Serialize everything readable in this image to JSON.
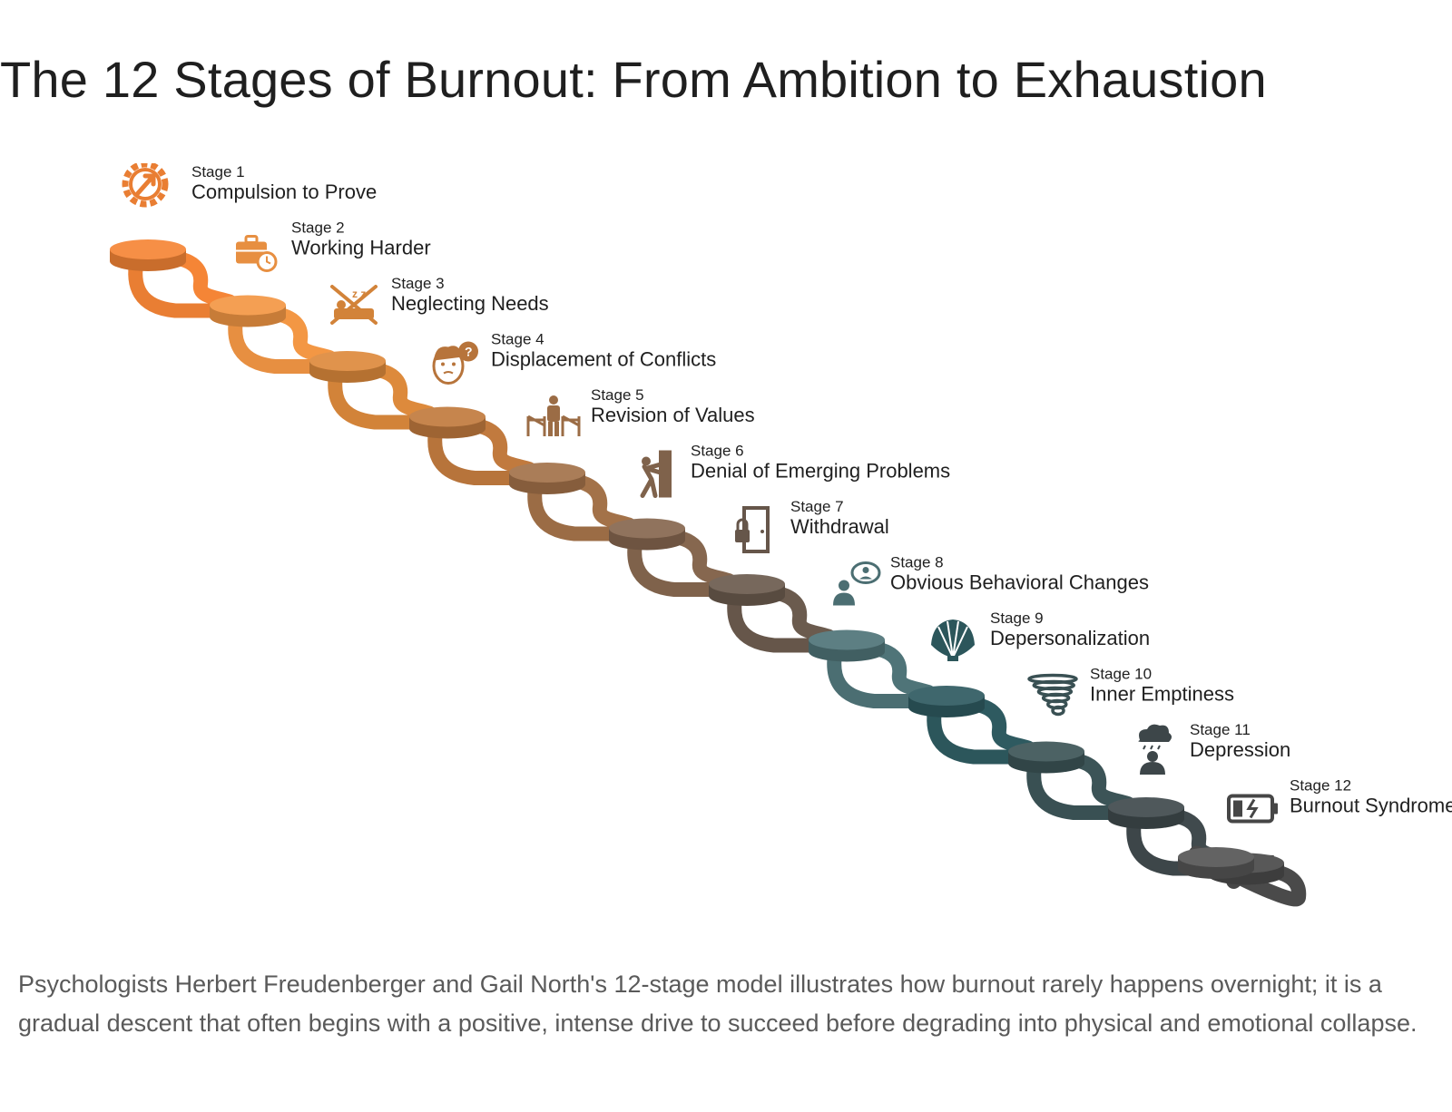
{
  "title": "The 12 Stages of Burnout: From Ambition to Exhaustion",
  "caption": "Psychologists Herbert Freudenberger and Gail North's 12-stage model illustrates how burnout rarely happens overnight; it is a gradual descent that often begins with a positive, intense drive to succeed before degrading into physical and emotional collapse.",
  "stages": [
    {
      "num": "Stage 1",
      "label": "Compulsion to Prove",
      "icon": "gear-arrow-icon",
      "color": "#f58536"
    },
    {
      "num": "Stage 2",
      "label": "Working Harder",
      "icon": "briefcase-clock-icon",
      "color": "#f39744"
    },
    {
      "num": "Stage 3",
      "label": "Neglecting Needs",
      "icon": "no-sleep-icon",
      "color": "#dd8a3c"
    },
    {
      "num": "Stage 4",
      "label": "Displacement of Conflicts",
      "icon": "confused-face-icon",
      "color": "#c17a3e"
    },
    {
      "num": "Stage 5",
      "label": "Revision of Values",
      "icon": "person-barrier-icon",
      "color": "#a37249"
    },
    {
      "num": "Stage 6",
      "label": "Denial of Emerging Problems",
      "icon": "person-pushing-wall-icon",
      "color": "#86674f"
    },
    {
      "num": "Stage 7",
      "label": "Withdrawal",
      "icon": "locked-door-icon",
      "color": "#6b5b4e"
    },
    {
      "num": "Stage 8",
      "label": "Obvious Behavioral Changes",
      "icon": "person-speech-icon",
      "color": "#4f7478"
    },
    {
      "num": "Stage 9",
      "label": "Depersonalization",
      "icon": "shell-icon",
      "color": "#2e5a60"
    },
    {
      "num": "Stage 10",
      "label": "Inner Emptiness",
      "icon": "tornado-icon",
      "color": "#3c5457"
    },
    {
      "num": "Stage 11",
      "label": "Depression",
      "icon": "rain-cloud-person-icon",
      "color": "#404a4d"
    },
    {
      "num": "Stage 12",
      "label": "Burnout Syndrome",
      "icon": "empty-battery-icon",
      "color": "#4a4a4a"
    }
  ],
  "final_step_color": "#555555"
}
